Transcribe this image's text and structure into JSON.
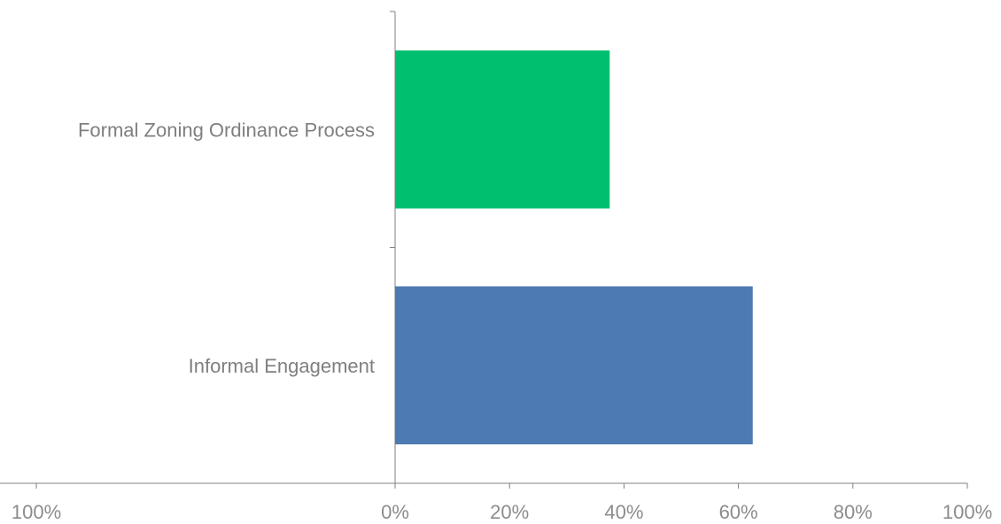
{
  "chart_data": {
    "type": "bar",
    "orientation": "horizontal",
    "categories": [
      "Formal Zoning Ordinance Process",
      "Informal Engagement"
    ],
    "values": [
      37.5,
      62.5
    ],
    "colors": [
      "#00c06f",
      "#4e7ab3"
    ],
    "xlim": [
      0,
      100
    ],
    "x_tick_labels": [
      "0%",
      "20%",
      "40%",
      "60%",
      "80%",
      "100%"
    ],
    "x_tick_values": [
      0,
      20,
      40,
      60,
      80,
      100
    ],
    "extra_left_tick_label": "100%",
    "grid": false,
    "title": "",
    "xlabel": "",
    "ylabel": ""
  }
}
